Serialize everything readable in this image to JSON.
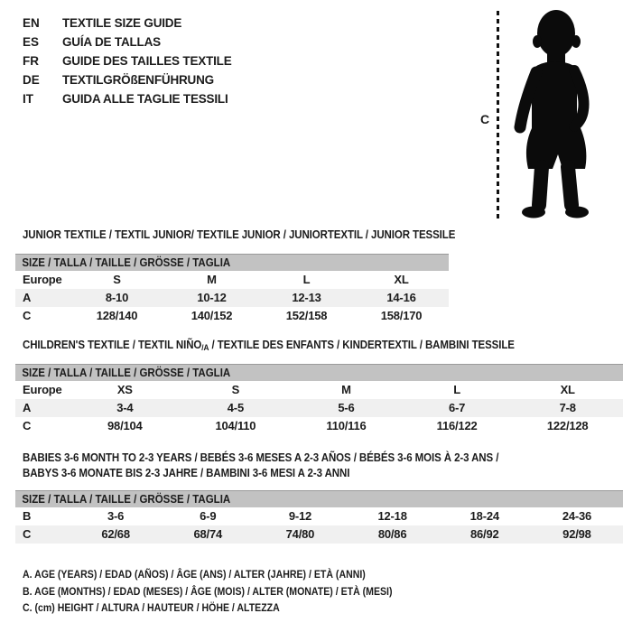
{
  "page": {
    "background": "#ffffff",
    "text_color": "#1c1c1c"
  },
  "colors": {
    "header_band": "#c2c2c2",
    "header_band_border": "#9a9a9a",
    "alt_row": "#f0f0f0",
    "silhouette": "#0b0b0b"
  },
  "language_guide": {
    "items": [
      {
        "code": "EN",
        "label": "TEXTILE SIZE GUIDE"
      },
      {
        "code": "ES",
        "label": "GUÍA DE TALLAS"
      },
      {
        "code": "FR",
        "label": "GUIDE DES TAILLES TEXTILE"
      },
      {
        "code": "DE",
        "label": "TEXTILGRÖßENFÜHRUNG"
      },
      {
        "code": "IT",
        "label": "GUIDA ALLE TAGLIE TESSILI"
      }
    ]
  },
  "figure": {
    "measure_label": "C",
    "illustration": "toddler-silhouette",
    "height_line_style": "vertical-dashed"
  },
  "tables": [
    {
      "title_lines": [
        [
          {
            "t": "JUNIOR TEXTILE / TEXTIL JUNIOR/ TEXTILE JUNIOR / JUNIORTEXTIL / JUNIOR TESSILE",
            "sub": false
          }
        ]
      ],
      "size_header": "SIZE / TALLA / TAILLE / GRÖSSE / TAGLIA",
      "rows": [
        {
          "label": "Europe",
          "shaded": false,
          "cells": [
            "S",
            "M",
            "L",
            "XL"
          ]
        },
        {
          "label": "A",
          "shaded": true,
          "cells": [
            "8-10",
            "10-12",
            "12-13",
            "14-16"
          ]
        },
        {
          "label": "C",
          "shaded": false,
          "cells": [
            "128/140",
            "140/152",
            "152/158",
            "158/170"
          ]
        }
      ]
    },
    {
      "title_lines": [
        [
          {
            "t": "CHILDREN'S TEXTILE / TEXTIL NIÑO",
            "sub": false
          },
          {
            "t": "/A",
            "sub": true
          },
          {
            "t": " / TEXTILE DES ENFANTS / KINDERTEXTIL / BAMBINI TESSILE",
            "sub": false
          }
        ]
      ],
      "size_header": "SIZE / TALLA / TAILLE / GRÖSSE / TAGLIA",
      "rows": [
        {
          "label": "Europe",
          "shaded": false,
          "cells": [
            "XS",
            "S",
            "M",
            "L",
            "XL"
          ]
        },
        {
          "label": "A",
          "shaded": true,
          "cells": [
            "3-4",
            "4-5",
            "5-6",
            "6-7",
            "7-8"
          ]
        },
        {
          "label": "C",
          "shaded": false,
          "cells": [
            "98/104",
            "104/110",
            "110/116",
            "116/122",
            "122/128"
          ]
        }
      ]
    },
    {
      "title_lines": [
        [
          {
            "t": "BABIES 3-6 MONTH TO 2-3 YEARS / BEBÉS 3-6 MESES A 2-3 AÑOS / BÉBÉS 3-6 MOIS À 2-3 ANS /",
            "sub": false
          }
        ],
        [
          {
            "t": "BABYS 3-6 MONATE BIS 2-3 JAHRE / BAMBINI 3-6 MESI A 2-3 ANNI",
            "sub": false
          }
        ]
      ],
      "size_header": "SIZE / TALLA / TAILLE / GRÖSSE / TAGLIA",
      "rows": [
        {
          "label": "B",
          "shaded": false,
          "cells": [
            "3-6",
            "6-9",
            "9-12",
            "12-18",
            "18-24",
            "24-36"
          ]
        },
        {
          "label": "C",
          "shaded": true,
          "cells": [
            "62/68",
            "68/74",
            "74/80",
            "80/86",
            "86/92",
            "92/98"
          ]
        }
      ]
    }
  ],
  "legend": {
    "lines": [
      "A. AGE (YEARS) / EDAD (AÑOS) / ÂGE (ANS) / ALTER (JAHRE) / ETÀ (ANNI)",
      "B. AGE (MONTHS) / EDAD (MESES) / ÂGE (MOIS) / ALTER (MONATE) / ETÀ (MESI)",
      "C. (cm) HEIGHT / ALTURA / HAUTEUR / HÖHE / ALTEZZA"
    ]
  }
}
